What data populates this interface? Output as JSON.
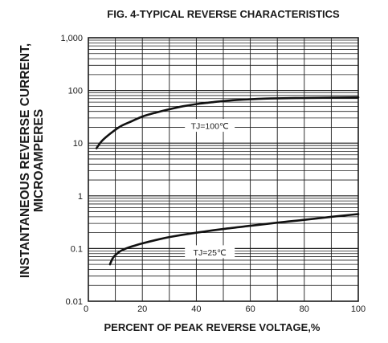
{
  "chart_data": {
    "type": "line",
    "title": "FIG. 4-TYPICAL REVERSE CHARACTERISTICS",
    "xlabel": "PERCENT OF PEAK REVERSE VOLTAGE,%",
    "ylabel_line1": "INSTANTANEOUS REVERSE CURRENT,",
    "ylabel_line2": "MICROAMPERES",
    "xlim": [
      0,
      100
    ],
    "ylim": [
      0.01,
      1000
    ],
    "yscale": "log",
    "grid": true,
    "x_tick_labels": [
      "0",
      "20",
      "40",
      "60",
      "80",
      "100"
    ],
    "y_tick_labels": [
      "0.01",
      "0.1",
      "1",
      "10",
      "100",
      "1,000"
    ],
    "series": [
      {
        "name": "TJ=100℃",
        "x": [
          3,
          5,
          8,
          12,
          16,
          20,
          25,
          30,
          35,
          40,
          45,
          50,
          55,
          60,
          65,
          70,
          80,
          90,
          100
        ],
        "y": [
          8,
          11,
          15,
          21,
          26,
          32,
          38,
          44,
          50,
          55,
          59,
          63,
          66,
          68,
          70,
          71,
          72,
          73,
          74
        ]
      },
      {
        "name": "TJ=25℃",
        "x": [
          8,
          9,
          10,
          12,
          15,
          20,
          25,
          30,
          40,
          50,
          60,
          70,
          80,
          90,
          100
        ],
        "y": [
          0.05,
          0.065,
          0.075,
          0.09,
          0.105,
          0.125,
          0.145,
          0.165,
          0.2,
          0.235,
          0.27,
          0.31,
          0.35,
          0.4,
          0.45
        ]
      }
    ]
  }
}
